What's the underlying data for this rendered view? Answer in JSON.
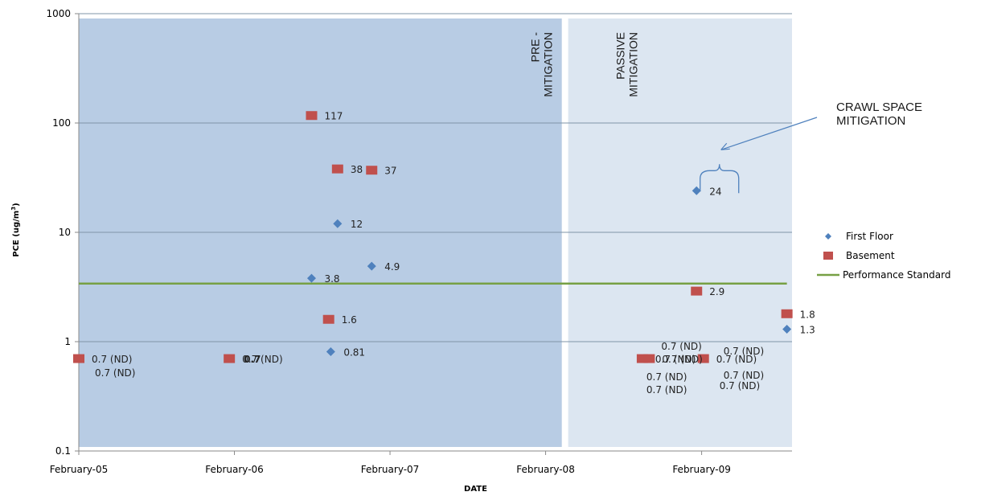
{
  "chart_data": {
    "type": "scatter",
    "title": "",
    "xlabel": "DATE",
    "ylabel": "PCE (ug/m",
    "ylabel_sup": "3",
    "ylabel_tail": ")",
    "yscale": "log",
    "ylim": [
      0.1,
      1000
    ],
    "xlim": [
      "2005-02-01",
      "2009-09-01"
    ],
    "x_ticks": [
      {
        "date": "2005-02-01",
        "label": "February-05"
      },
      {
        "date": "2006-02-01",
        "label": "February-06"
      },
      {
        "date": "2007-02-01",
        "label": "February-07"
      },
      {
        "date": "2008-02-01",
        "label": "February-08"
      },
      {
        "date": "2009-02-01",
        "label": "February-09"
      }
    ],
    "y_ticks": [
      {
        "value": 0.1,
        "label": "0.1"
      },
      {
        "value": 1,
        "label": "1"
      },
      {
        "value": 10,
        "label": "10"
      },
      {
        "value": 100,
        "label": "100"
      },
      {
        "value": 1000,
        "label": "1000"
      }
    ],
    "grid": true,
    "legend_position": "right",
    "regions": [
      {
        "label_lines": [
          "PRE -",
          "MITIGATION"
        ],
        "start": "2005-02-01",
        "end": "2008-03-10",
        "color": "#b8cce4"
      },
      {
        "label_lines": [
          "PASSIVE",
          "MITIGATION"
        ],
        "start": "2008-03-25",
        "end": "2009-09-01",
        "color": "#dce6f1"
      }
    ],
    "series": [
      {
        "name": "First Floor",
        "marker": "diamond",
        "color": "#4f81bd",
        "points": [
          {
            "x": "2006-08-01",
            "y": 3.8,
            "label": "3.8"
          },
          {
            "x": "2006-09-15",
            "y": 0.81,
            "label": "0.81"
          },
          {
            "x": "2006-10-01",
            "y": 12,
            "label": "12"
          },
          {
            "x": "2006-12-20",
            "y": 4.9,
            "label": "4.9"
          },
          {
            "x": "2009-01-20",
            "y": 24,
            "label": "24"
          },
          {
            "x": "2009-08-20",
            "y": 1.3,
            "label": "1.3"
          }
        ]
      },
      {
        "name": "Basement",
        "marker": "square",
        "color": "#c0504d",
        "points": [
          {
            "x": "2005-02-01",
            "y": 0.7,
            "label": "0.7 (ND)"
          },
          {
            "x": "2006-01-20",
            "y": 0.7,
            "label": "0.7 (ND)"
          },
          {
            "x": "2006-08-01",
            "y": 117,
            "label": "117"
          },
          {
            "x": "2006-09-10",
            "y": 1.6,
            "label": "1.6"
          },
          {
            "x": "2006-10-01",
            "y": 38,
            "label": "38"
          },
          {
            "x": "2006-12-20",
            "y": 37,
            "label": "37"
          },
          {
            "x": "2008-09-15",
            "y": 0.7,
            "label": "0.7 (ND)"
          },
          {
            "x": "2008-10-01",
            "y": 0.7,
            "label": "0.7 (ND)"
          },
          {
            "x": "2009-01-20",
            "y": 2.9,
            "label": "2.9"
          },
          {
            "x": "2009-02-05",
            "y": 0.7,
            "label": "0.7 (ND)"
          },
          {
            "x": "2009-08-20",
            "y": 1.8,
            "label": "1.8"
          }
        ]
      },
      {
        "name": "Performance Standard",
        "marker": "line",
        "color": "#77a044",
        "points": [
          {
            "x": "2005-02-01",
            "y": 3.4
          },
          {
            "x": "2009-08-20",
            "y": 3.4
          }
        ]
      }
    ],
    "extra_labels": [
      {
        "text": "0.7 (ND)",
        "x": "2005-02-01",
        "y": 0.7,
        "dx": 20,
        "dy": 17
      },
      {
        "text": "0.7",
        "x": "2006-01-20",
        "y": 0.7,
        "dx": 18,
        "dy": 0,
        "bold": true
      },
      {
        "text": "0.7 (ND)",
        "x": "2008-09-15",
        "y": 0.7,
        "dx": 5,
        "dy": 22
      },
      {
        "text": "0.7 (ND)",
        "x": "2008-09-15",
        "y": 0.7,
        "dx": 5,
        "dy": 38
      },
      {
        "text": "0.7 (ND)",
        "x": "2008-10-01",
        "y": 0.7,
        "dx": 15,
        "dy": -16
      },
      {
        "text": "0.7 (ND)",
        "x": "2009-02-05",
        "y": 0.7,
        "dx": 25,
        "dy": -10
      },
      {
        "text": "0.7 (ND)",
        "x": "2009-02-05",
        "y": 0.7,
        "dx": 25,
        "dy": 20
      },
      {
        "text": "0.7 (ND)",
        "x": "2009-02-05",
        "y": 0.7,
        "dx": 20,
        "dy": 33
      }
    ],
    "annotation": {
      "lines": [
        "CRAWL SPACE",
        "MITIGATION"
      ]
    }
  }
}
